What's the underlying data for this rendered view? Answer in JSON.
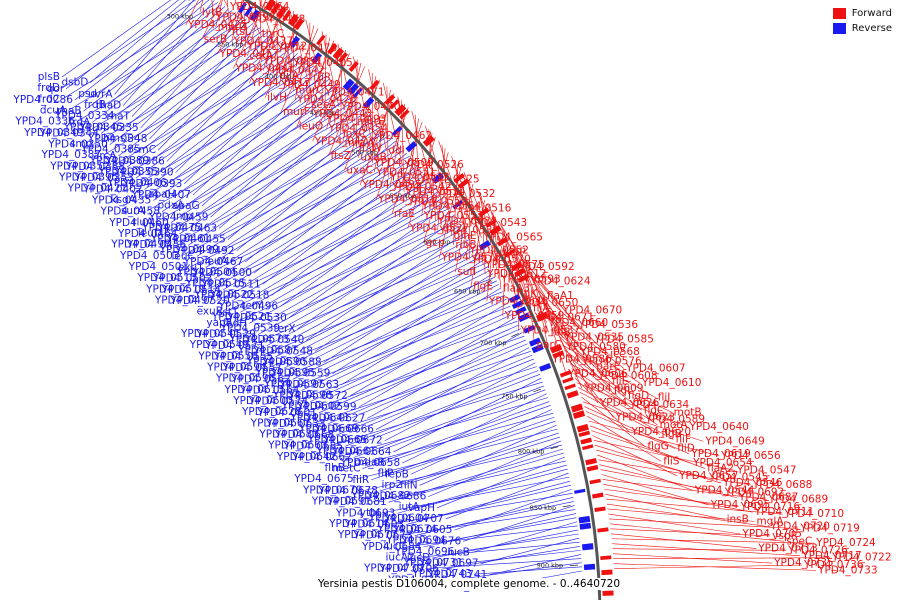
{
  "colors": {
    "forward": "#ee1111",
    "reverse": "#1a1aee",
    "ring": "#555555"
  },
  "legend": [
    {
      "label": "Forward",
      "color": "#ee1111"
    },
    {
      "label": "Reverse",
      "color": "#1a1aee"
    }
  ],
  "caption": "Yersinia pestis D106004, complete genome. - 0..4640720",
  "scale_ticks": [
    "300 kbp",
    "350 kbp",
    "400 kbp",
    "450 kbp",
    "500 kbp",
    "550 kbp",
    "600 kbp",
    "650 kbp",
    "700 kbp",
    "750 kbp",
    "800 kbp",
    "850 kbp",
    "900 kbp"
  ],
  "reverse_labels": [
    "plsB",
    "qor",
    "dsbD",
    "uvrA",
    "frdD",
    "YPD4_0286",
    "psd",
    "rhaD",
    "frdC",
    "rhaB",
    "frdB",
    "rhaT",
    "dcuA",
    "frdA",
    "YPD4_0334",
    "YPD4_0335",
    "YPD4_0336",
    "YPD4_0344",
    "YPD4_0345",
    "YPD4_0348",
    "YPD4_0349",
    "YPD4_0350",
    "hmsT",
    "rsmC",
    "smp",
    "arcA",
    "YPD4_0385",
    "YPD4_0386",
    "YPD4_0387",
    "YPD4_0388",
    "YPD4_0389",
    "YPD4_0390",
    "YPD4_0352",
    "YPD4_0353",
    "YPD4_0355",
    "YPD4_0393",
    "YPD4_0395",
    "YPD4_0402",
    "YPD4_0406",
    "YPD4_0407",
    "YPD4_0421",
    "YPD4_0435",
    "apaH",
    "apaG",
    "ksgA",
    "YPD4_0458",
    "pdxA",
    "YPD4_0459",
    "surA",
    "YPD4_0460",
    "imp",
    "YPD4_0463",
    "rluA",
    "YPD4_0464",
    "YPD4_0475",
    "YPD4_0455",
    "leuD",
    "YPD4_0456",
    "YPD4_0461",
    "YPD4_0492",
    "YPD4_0498",
    "leuC",
    "YPD4_0499",
    "YPD4_0467",
    "YPD4_0503",
    "exuT",
    "leuA",
    "YPD4_0500",
    "YPD4_0501",
    "YPD4_0502",
    "YPD4_0504",
    "YPD4_0511",
    "YPD4_0513",
    "YPD4_0514",
    "YPD4_0515",
    "YPD4_0518",
    "YPD4_0519",
    "YPD4_0520",
    "YPD4_0522",
    "YPD4_0496",
    "YPD4_0497",
    "sstT",
    "terY",
    "YPD4_0530",
    "exuR",
    "fadH",
    "YPD4_0521",
    "terX",
    "yapF",
    "YPD4_0529",
    "YPD4_0539",
    "YPD4_0540",
    "YPD4_0541",
    "YPD4_0571",
    "YPD4_0573",
    "YPD4_0548",
    "YPD4_0549",
    "YPD4_0555",
    "YPD4_0587",
    "YPD4_0588",
    "YPD4_0556",
    "YPD4_0557",
    "YPD4_0590",
    "YPD4_0559",
    "YPD4_0594",
    "YPD4_0562",
    "YPD4_0595",
    "YPD4_0563",
    "YPD4_0596",
    "YPD4_0564",
    "YPD4_0597",
    "YPD4_0572",
    "YPD4_0613",
    "YPD4_0574",
    "YPD4_0598",
    "YPD4_0599",
    "YPD4_0600",
    "YPD4_0601",
    "YPD4_0602",
    "YPD4_0627",
    "YPD4_0628",
    "YPD4_0633",
    "YPD4_0641",
    "YPD4_0666",
    "YPD4_0667",
    "YPD4_0668",
    "YPD4_0669",
    "YPD4_0672",
    "YPD4_0683",
    "YPD4_0685",
    "YPD4_0665",
    "YPD4_0664",
    "YPD4_0663",
    "YPD4_0662",
    "YPD4_0661",
    "YPD4_0658",
    "YPD4_0642",
    "metC",
    "mdaB",
    "fepB",
    "flhB",
    "fliR",
    "fliP",
    "fliN",
    "YPD4_0675",
    "YPD4_0678",
    "irp2",
    "YPD4_0686",
    "YPD4_0679",
    "YPD4_0681",
    "YPD4_0682",
    "vapH",
    "YPD4_0691",
    "YPD4_0693",
    "iutA",
    "YPD4_0707",
    "ytbI",
    "YPD4_0603",
    "YPD4_0604",
    "YPD4_0605",
    "YPD4_0614",
    "YPD4_0673",
    "YPD4_0674",
    "YPD4_0676",
    "YPD4_0677",
    "YPD4_0684",
    "YPD4_0694",
    "iucB",
    "iucC",
    "iucD",
    "YPD4_0696",
    "YPD4_0697",
    "iucA2",
    "YPD4_0706",
    "YPD4_0731",
    "YPD4_0741",
    "YPD4_0739",
    "YPD4_0729",
    "YPD4_0743",
    "YPD4_0738"
  ],
  "forward_labels": [
    "YPD4_0364",
    "YPD4_0392",
    "lytB",
    "YPD4_0425",
    "YPD4_0448",
    "ftsL",
    "murG",
    "serB",
    "thrC",
    "YPD4_0412",
    "YPD4_0437",
    "YPD4_0457",
    "YPD4_0476",
    "YPD4_0391",
    "carA",
    "YPD4_0441",
    "YPD4_0405",
    "djlA",
    "YPD4_0442",
    "YPD4_0417",
    "fruR",
    "murC",
    "YPD4_0449",
    "ilvH",
    "YPD4_0471",
    "secA",
    "YPD4_0426",
    "murF",
    "YPD4_0470",
    "YPD4_0493",
    "YPD4_0443",
    "leuO",
    "murE",
    "lpxC",
    "YPD4_0454",
    "YPD4_0473",
    "YPD4_0462",
    "ftsW",
    "mraW",
    "ftsZ",
    "ddl",
    "YPD4_0509",
    "uxaB",
    "uxaC",
    "YPD4_0526",
    "YPD4_0533",
    "YPD4_0551",
    "YPD4_0495",
    "YPD4_0525",
    "YPD4_0534",
    "YPD4_0542",
    "YPD4_0510",
    "YPD4_0532",
    "YPD4_0554",
    "YPD4_0550",
    "rfaE",
    "YPD4_0516",
    "YPD4_0531",
    "YPD4_0553",
    "YPD4_0527",
    "YPD4_0543",
    "glnE",
    "YPD4_0538",
    "gcp",
    "YPD4_0565",
    "YPD4_0552",
    "ribB",
    "YPD4_0578",
    "uppP",
    "YPD4_0575",
    "YPD4_0570",
    "sufI",
    "YPD4_0592",
    "YPD4_0593",
    "YPD4_0612",
    "flgE",
    "YPD4_0624",
    "flgK",
    "flaA3",
    "YPD4_0648",
    "flaA1",
    "fliA",
    "YPD4_0650",
    "YPD4_0659",
    "YPD4_0670",
    "YPD4_0660",
    "YPD4_0671",
    "YPD4_0537",
    "YPD4_0536",
    "YPD4_0535",
    "folB",
    "parC",
    "YPD4_0585",
    "YPD4_0568",
    "YPD4_0580",
    "YPD4_0586",
    "icc",
    "parE",
    "YPD4_0576",
    "YPD4_0606",
    "YPD4_0607",
    "fliE",
    "YPD4_0608",
    "YPD4_0609",
    "YPD4_0610",
    "flgD",
    "flgI",
    "YPD4_0626",
    "fliJ",
    "flgC",
    "YPD4_0634",
    "YPD4_0623",
    "motB",
    "motA",
    "YPD4_0589",
    "YPD4_0620",
    "YPD4_0640",
    "fliF",
    "flgB",
    "flgG",
    "YPD4_0649",
    "YPD4_0619",
    "fliD",
    "fliS",
    "YPD4_0656",
    "flaA2",
    "YPD4_0654",
    "YPD4_0657",
    "YPD4_0547",
    "YPD4_0546",
    "YPD4_0545",
    "YPD4_0544",
    "YPD4_0688",
    "YPD4_0687",
    "YPD4_0692",
    "YPD4_0695",
    "YPD4_0689",
    "YPD4_0711",
    "YPD4_0716",
    "insB",
    "YPD4_0710",
    "YPD4_0720",
    "mglA",
    "YPD4_0705",
    "YPD4_0719",
    "speC",
    "vspR",
    "YPD4_0713",
    "YPD4_0724",
    "YPD4_0717",
    "YPD4_0726",
    "YPD4_0735",
    "YPD4_0722",
    "YPD4_0733",
    "YPD4_0736"
  ]
}
